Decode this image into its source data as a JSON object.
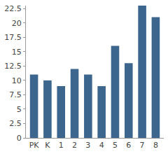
{
  "chart_data": {
    "type": "bar",
    "categories": [
      "PK",
      "K",
      "1",
      "2",
      "3",
      "4",
      "5",
      "6",
      "7",
      "8"
    ],
    "values": [
      11,
      10,
      9,
      12,
      11,
      9,
      16,
      13,
      23,
      21
    ],
    "color": "#3d668f",
    "ylim": [
      0,
      23
    ],
    "yticks": [
      0,
      2.5,
      5,
      7.5,
      10,
      12.5,
      15,
      17.5,
      20,
      22.5
    ],
    "grid": false
  }
}
